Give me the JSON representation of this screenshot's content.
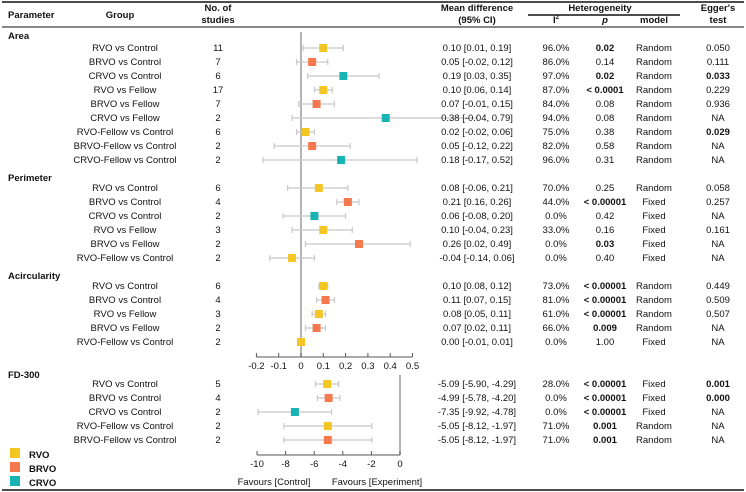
{
  "chart_data": {
    "type": "forest",
    "headers": {
      "parameter": "Parameter",
      "group": "Group",
      "n_line1": "No. of",
      "n_line2": "studies",
      "md_line1": "Mean difference",
      "md_line2": "(95% CI)",
      "heterogeneity": "Heterogeneity",
      "i2": "I",
      "i2_sup": "2",
      "p": "p",
      "model": "model",
      "egger_line1": "Egger's",
      "egger_line2": "test"
    },
    "colors": {
      "RVO": "#f3c623",
      "BRVO": "#f47a4e",
      "CRVO": "#17b3b5",
      "ci": "#c8c8c8",
      "zero": "#9a9a9a"
    },
    "sections": [
      {
        "name": "Area",
        "axis": "upper",
        "rows": [
          {
            "group": "RVO vs Control",
            "type": "RVO",
            "n": "11",
            "md": 0.1,
            "lo": 0.01,
            "hi": 0.19,
            "ci": "0.10 [0.01, 0.19]",
            "i2": "96.0%",
            "p": "0.02",
            "p_bold": true,
            "model": "Random",
            "egger": "0.050",
            "egger_bold": false
          },
          {
            "group": "BRVO vs Control",
            "type": "BRVO",
            "n": "7",
            "md": 0.05,
            "lo": -0.02,
            "hi": 0.12,
            "ci": "0.05 [-0.02, 0.12]",
            "i2": "86.0%",
            "p": "0.14",
            "p_bold": false,
            "model": "Random",
            "egger": "0.111",
            "egger_bold": false
          },
          {
            "group": "CRVO vs Control",
            "type": "CRVO",
            "n": "6",
            "md": 0.19,
            "lo": 0.03,
            "hi": 0.35,
            "ci": "0.19 [0.03, 0.35]",
            "i2": "97.0%",
            "p": "0.02",
            "p_bold": true,
            "model": "Random",
            "egger": "0.033",
            "egger_bold": true
          },
          {
            "group": "RVO vs Fellow",
            "type": "RVO",
            "n": "17",
            "md": 0.1,
            "lo": 0.06,
            "hi": 0.14,
            "ci": "0.10 [0.06, 0.14]",
            "i2": "87.0%",
            "p": "< 0.0001",
            "p_bold": true,
            "model": "Random",
            "egger": "0.229",
            "egger_bold": false
          },
          {
            "group": "BRVO vs Fellow",
            "type": "BRVO",
            "n": "7",
            "md": 0.07,
            "lo": -0.01,
            "hi": 0.15,
            "ci": "0.07 [-0.01, 0.15]",
            "i2": "84.0%",
            "p": "0.08",
            "p_bold": false,
            "model": "Random",
            "egger": "0.936",
            "egger_bold": false
          },
          {
            "group": "CRVO vs Fellow",
            "type": "CRVO",
            "n": "2",
            "md": 0.38,
            "lo": -0.04,
            "hi": 0.79,
            "ci": "0.38 [-0.04, 0.79]",
            "i2": "94.0%",
            "p": "0.08",
            "p_bold": false,
            "model": "Random",
            "egger": "NA",
            "egger_bold": false
          },
          {
            "group": "RVO-Fellow vs Control",
            "type": "RVO",
            "n": "6",
            "md": 0.02,
            "lo": -0.02,
            "hi": 0.06,
            "ci": "0.02 [-0.02, 0.06]",
            "i2": "75.0%",
            "p": "0.38",
            "p_bold": false,
            "model": "Random",
            "egger": "0.029",
            "egger_bold": true
          },
          {
            "group": "BRVO-Fellow vs Control",
            "type": "BRVO",
            "n": "2",
            "md": 0.05,
            "lo": -0.12,
            "hi": 0.22,
            "ci": "0.05 [-0.12, 0.22]",
            "i2": "82.0%",
            "p": "0.58",
            "p_bold": false,
            "model": "Random",
            "egger": "NA",
            "egger_bold": false
          },
          {
            "group": "CRVO-Fellow vs Control",
            "type": "CRVO",
            "n": "2",
            "md": 0.18,
            "lo": -0.17,
            "hi": 0.52,
            "ci": "0.18 [-0.17, 0.52]",
            "i2": "96.0%",
            "p": "0.31",
            "p_bold": false,
            "model": "Random",
            "egger": "NA",
            "egger_bold": false
          }
        ]
      },
      {
        "name": "Perimeter",
        "axis": "upper",
        "rows": [
          {
            "group": "RVO vs Control",
            "type": "RVO",
            "n": "6",
            "md": 0.08,
            "lo": -0.06,
            "hi": 0.21,
            "ci": "0.08 [-0.06, 0.21]",
            "i2": "70.0%",
            "p": "0.25",
            "p_bold": false,
            "model": "Random",
            "egger": "0.058",
            "egger_bold": false
          },
          {
            "group": "BRVO vs Control",
            "type": "BRVO",
            "n": "4",
            "md": 0.21,
            "lo": 0.16,
            "hi": 0.26,
            "ci": "0.21 [0.16, 0.26]",
            "i2": "44.0%",
            "p": "< 0.00001",
            "p_bold": true,
            "model": "Fixed",
            "egger": "0.257",
            "egger_bold": false
          },
          {
            "group": "CRVO vs Control",
            "type": "CRVO",
            "n": "2",
            "md": 0.06,
            "lo": -0.08,
            "hi": 0.2,
            "ci": "0.06 [-0.08, 0.20]",
            "i2": "0.0%",
            "p": "0.42",
            "p_bold": false,
            "model": "Fixed",
            "egger": "NA",
            "egger_bold": false
          },
          {
            "group": "RVO vs Fellow",
            "type": "RVO",
            "n": "3",
            "md": 0.1,
            "lo": -0.04,
            "hi": 0.23,
            "ci": "0.10 [-0.04, 0.23]",
            "i2": "33.0%",
            "p": "0.16",
            "p_bold": false,
            "model": "Fixed",
            "egger": "0.161",
            "egger_bold": false
          },
          {
            "group": "BRVO vs Fellow",
            "type": "BRVO",
            "n": "2",
            "md": 0.26,
            "lo": 0.02,
            "hi": 0.49,
            "ci": "0.26 [0.02, 0.49]",
            "i2": "0.0%",
            "p": "0.03",
            "p_bold": true,
            "model": "Fixed",
            "egger": "NA",
            "egger_bold": false
          },
          {
            "group": "RVO-Fellow vs Control",
            "type": "RVO",
            "n": "2",
            "md": -0.04,
            "lo": -0.14,
            "hi": 0.06,
            "ci": "-0.04 [-0.14, 0.06]",
            "i2": "0.0%",
            "p": "0.40",
            "p_bold": false,
            "model": "Fixed",
            "egger": "NA",
            "egger_bold": false
          }
        ]
      },
      {
        "name": "Acircularity",
        "axis": "upper",
        "rows": [
          {
            "group": "RVO vs Control",
            "type": "RVO",
            "n": "6",
            "md": 0.1,
            "lo": 0.08,
            "hi": 0.12,
            "ci": "0.10 [0.08, 0.12]",
            "i2": "73.0%",
            "p": "< 0.00001",
            "p_bold": true,
            "model": "Random",
            "egger": "0.449",
            "egger_bold": false
          },
          {
            "group": "BRVO vs Control",
            "type": "BRVO",
            "n": "4",
            "md": 0.11,
            "lo": 0.07,
            "hi": 0.15,
            "ci": "0.11 [0.07, 0.15]",
            "i2": "81.0%",
            "p": "< 0.00001",
            "p_bold": true,
            "model": "Random",
            "egger": "0.509",
            "egger_bold": false
          },
          {
            "group": "RVO vs Fellow",
            "type": "RVO",
            "n": "3",
            "md": 0.08,
            "lo": 0.05,
            "hi": 0.11,
            "ci": "0.08 [0.05, 0.11]",
            "i2": "61.0%",
            "p": "< 0.00001",
            "p_bold": true,
            "model": "Random",
            "egger": "0.507",
            "egger_bold": false
          },
          {
            "group": "BRVO vs Fellow",
            "type": "BRVO",
            "n": "2",
            "md": 0.07,
            "lo": 0.02,
            "hi": 0.11,
            "ci": "0.07 [0.02, 0.11]",
            "i2": "66.0%",
            "p": "0.009",
            "p_bold": true,
            "model": "Random",
            "egger": "NA",
            "egger_bold": false
          },
          {
            "group": "RVO-Fellow vs Control",
            "type": "RVO",
            "n": "2",
            "md": 0.0,
            "lo": -0.01,
            "hi": 0.01,
            "ci": "0.00 [-0.01, 0.01]",
            "i2": "0.0%",
            "p": "1.00",
            "p_bold": false,
            "model": "Fixed",
            "egger": "NA",
            "egger_bold": false
          }
        ]
      },
      {
        "name": "FD-300",
        "axis": "lower",
        "rows": [
          {
            "group": "RVO vs Control",
            "type": "RVO",
            "n": "5",
            "md": -5.09,
            "lo": -5.9,
            "hi": -4.29,
            "ci": "-5.09 [-5.90, -4.29]",
            "i2": "28.0%",
            "p": "< 0.00001",
            "p_bold": true,
            "model": "Fixed",
            "egger": "0.001",
            "egger_bold": true
          },
          {
            "group": "BRVO vs Control",
            "type": "BRVO",
            "n": "4",
            "md": -4.99,
            "lo": -5.78,
            "hi": -4.2,
            "ci": "-4.99 [-5.78, -4.20]",
            "i2": "0.0%",
            "p": "< 0.00001",
            "p_bold": true,
            "model": "Fixed",
            "egger": "0.000",
            "egger_bold": true
          },
          {
            "group": "CRVO vs Control",
            "type": "CRVO",
            "n": "2",
            "md": -7.35,
            "lo": -9.92,
            "hi": -4.78,
            "ci": "-7.35 [-9.92, -4.78]",
            "i2": "0.0%",
            "p": "< 0.00001",
            "p_bold": true,
            "model": "Fixed",
            "egger": "NA",
            "egger_bold": false
          },
          {
            "group": "RVO-Fellow vs Control",
            "type": "RVO",
            "n": "2",
            "md": -5.05,
            "lo": -8.12,
            "hi": -1.97,
            "ci": "-5.05 [-8.12, -1.97]",
            "i2": "71.0%",
            "p": "0.001",
            "p_bold": true,
            "model": "Random",
            "egger": "NA",
            "egger_bold": false
          },
          {
            "group": "BRVO-Fellow vs Control",
            "type": "BRVO",
            "n": "2",
            "md": -5.05,
            "lo": -8.12,
            "hi": -1.97,
            "ci": "-5.05 [-8.12, -1.97]",
            "i2": "71.0%",
            "p": "0.001",
            "p_bold": true,
            "model": "Random",
            "egger": "NA",
            "egger_bold": false
          }
        ]
      }
    ],
    "axes": {
      "upper": {
        "xlim": [
          -0.2,
          0.5
        ],
        "ticks": [
          "-0.2",
          "-0.1",
          "0",
          "0.1",
          "0.2",
          "0.3",
          "0.4",
          "0.5"
        ]
      },
      "lower": {
        "xlim": [
          -10,
          0
        ],
        "ticks": [
          "-10",
          "-8",
          "-6",
          "-4",
          "-2",
          "0"
        ],
        "favours_left": "Favours [Control]",
        "favours_right": "Favours [Experiment]"
      }
    },
    "legend": [
      {
        "label": "RVO",
        "type": "RVO"
      },
      {
        "label": "BRVO",
        "type": "BRVO"
      },
      {
        "label": "CRVO",
        "type": "CRVO"
      }
    ],
    "legend_position": "bottom-left"
  }
}
